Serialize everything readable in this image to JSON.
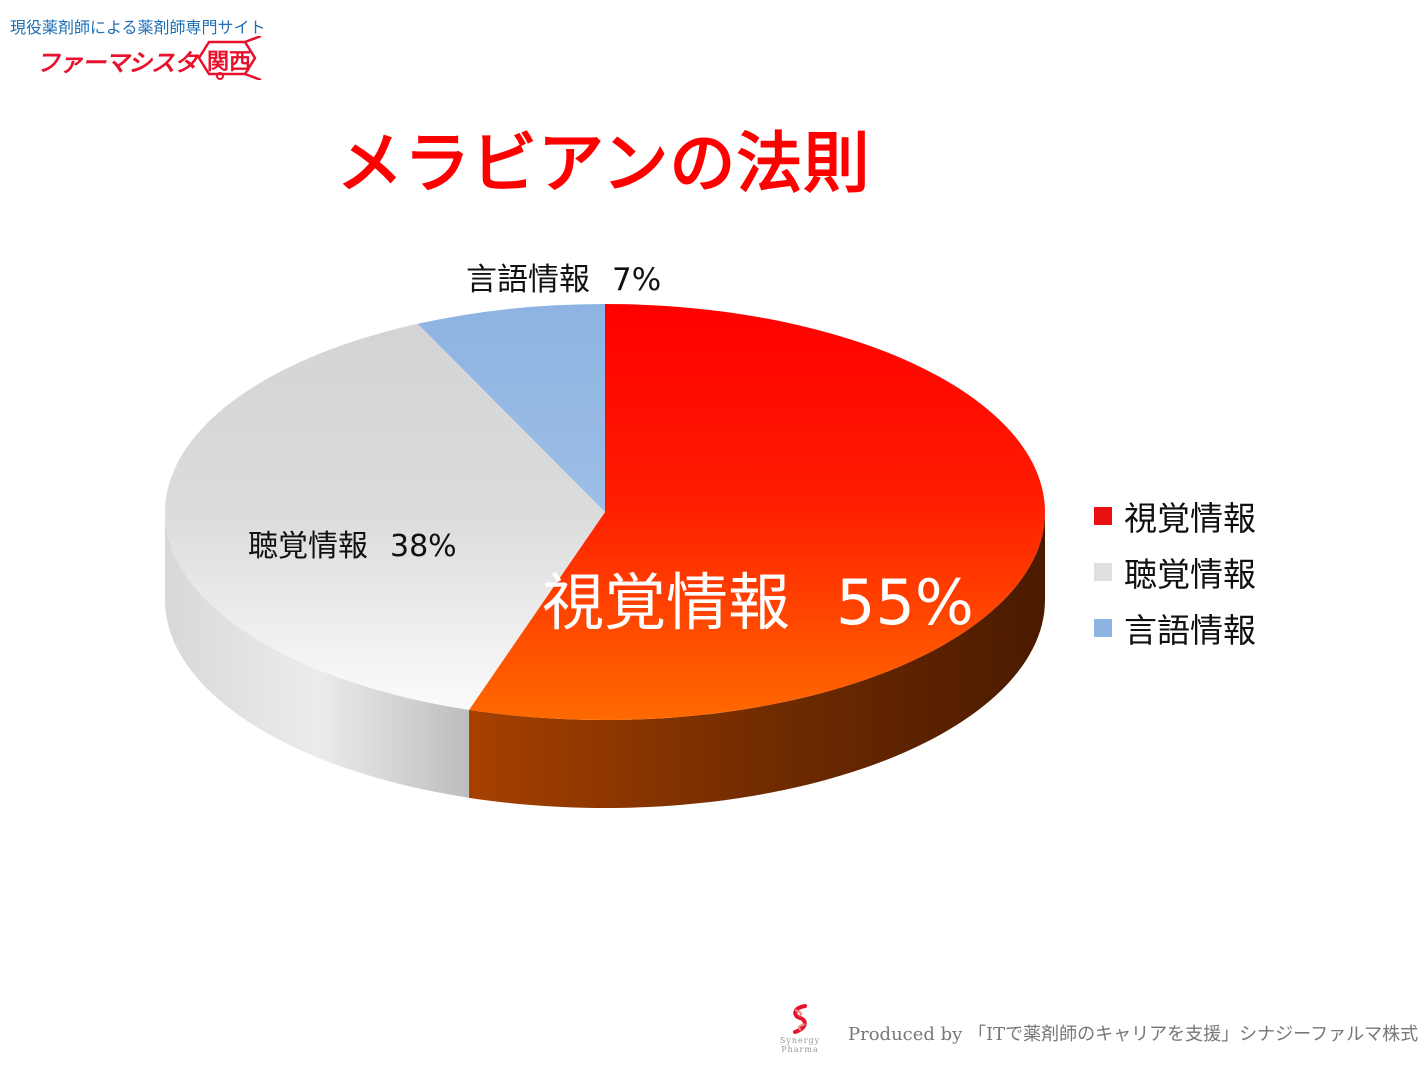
{
  "header": {
    "tagline": "現役薬剤師による薬剤師専門サイト",
    "logo_text": "ファーマシスタ",
    "logo_badge": "関西"
  },
  "chart_data": {
    "type": "pie",
    "title": "メラビアンの法則",
    "categories": [
      "視覚情報",
      "聴覚情報",
      "言語情報"
    ],
    "values": [
      55,
      38,
      7
    ],
    "unit": "%",
    "colors": [
      "#ff0000",
      "#d9d9d9",
      "#8db3e2"
    ],
    "legend_position": "right",
    "data_labels": [
      {
        "category": "視覚情報",
        "value": "55%"
      },
      {
        "category": "聴覚情報",
        "value": "38%"
      },
      {
        "category": "言語情報",
        "value": "7%"
      }
    ]
  },
  "legend": {
    "items": [
      {
        "label": "視覚情報",
        "color": "#e8110f"
      },
      {
        "label": "聴覚情報",
        "color": "#e0e0e0"
      },
      {
        "label": "言語情報",
        "color": "#8db3e2"
      }
    ]
  },
  "footer": {
    "logo_top": "Synergy",
    "logo_bottom": "Pharma",
    "credit": "Produced by 「ITで薬剤師のキャリアを支援」シナジーファルマ株式会社"
  }
}
